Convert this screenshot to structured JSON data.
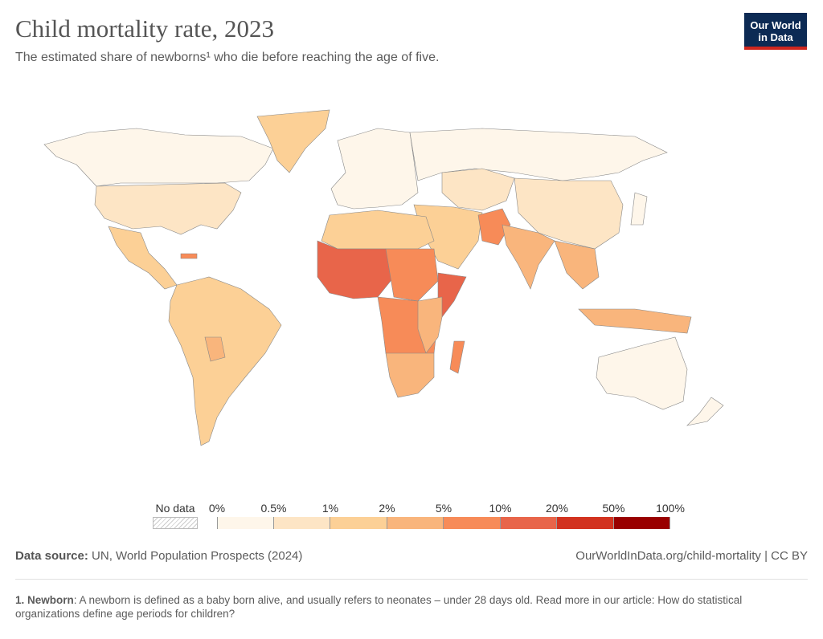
{
  "header": {
    "title": "Child mortality rate, 2023",
    "subtitle": "The estimated share of newborns¹ who die before reaching the age of five.",
    "logo_line1": "Our World",
    "logo_line2": "in Data"
  },
  "legend": {
    "no_data_label": "No data",
    "ticks": [
      "0%",
      "0.5%",
      "1%",
      "2%",
      "5%",
      "10%",
      "20%",
      "50%",
      "100%"
    ],
    "colors": [
      "#fef6ea",
      "#fde5c5",
      "#fcd096",
      "#f9b57c",
      "#f78b58",
      "#e8654a",
      "#d2321f",
      "#990000"
    ]
  },
  "footer": {
    "source_label": "Data source:",
    "source_text": " UN, World Population Prospects (2024)",
    "url": "OurWorldInData.org/child-mortality | CC BY",
    "note_label": "1. Newborn",
    "note_text": ": A newborn is defined as a baby born alive, and usually refers to neonates – under 28 days old. Read more in our article: How do statistical organizations define age periods for children?"
  }
}
